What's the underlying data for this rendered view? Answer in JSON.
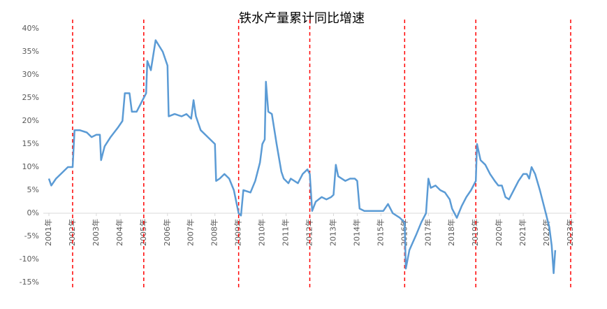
{
  "chart_data": {
    "type": "line",
    "title": "铁水产量累计同比增速",
    "xlim": [
      2001,
      2023
    ],
    "xticks": [
      {
        "value": 2001,
        "label": "2001年"
      },
      {
        "value": 2002,
        "label": "2002年"
      },
      {
        "value": 2003,
        "label": "2003年"
      },
      {
        "value": 2004,
        "label": "2004年"
      },
      {
        "value": 2005,
        "label": "2005年"
      },
      {
        "value": 2006,
        "label": "2006年"
      },
      {
        "value": 2007,
        "label": "2007年"
      },
      {
        "value": 2008,
        "label": "2008年"
      },
      {
        "value": 2009,
        "label": "2009年"
      },
      {
        "value": 2010,
        "label": "2010年"
      },
      {
        "value": 2011,
        "label": "2011年"
      },
      {
        "value": 2012,
        "label": "2012年"
      },
      {
        "value": 2013,
        "label": "2013年"
      },
      {
        "value": 2014,
        "label": "2014年"
      },
      {
        "value": 2015,
        "label": "2015年"
      },
      {
        "value": 2016,
        "label": "2016年"
      },
      {
        "value": 2017,
        "label": "2017年"
      },
      {
        "value": 2018,
        "label": "2018年"
      },
      {
        "value": 2019,
        "label": "2019年"
      },
      {
        "value": 2020,
        "label": "2020年"
      },
      {
        "value": 2021,
        "label": "2021年"
      },
      {
        "value": 2022,
        "label": "2022年"
      },
      {
        "value": 2023,
        "label": "2023年"
      }
    ],
    "ylim": [
      -15,
      40
    ],
    "yticks": [
      {
        "value": 40,
        "label": "40%"
      },
      {
        "value": 35,
        "label": "35%"
      },
      {
        "value": 30,
        "label": "30%"
      },
      {
        "value": 25,
        "label": "25%"
      },
      {
        "value": 20,
        "label": "20%"
      },
      {
        "value": 15,
        "label": "15%"
      },
      {
        "value": 10,
        "label": "10%"
      },
      {
        "value": 5,
        "label": "5%"
      },
      {
        "value": 0,
        "label": "0%"
      },
      {
        "value": -5,
        "label": "-5%"
      },
      {
        "value": -10,
        "label": "-10%"
      },
      {
        "value": -15,
        "label": "-15%"
      }
    ],
    "vlines": [
      2002,
      2005,
      2009,
      2012,
      2016,
      2019,
      2023
    ],
    "vline_color": "#ff0000",
    "x": [
      2001.0,
      2001.1,
      2001.3,
      2001.6,
      2001.8,
      2002.0,
      2002.08,
      2002.3,
      2002.6,
      2002.8,
      2003.0,
      2003.15,
      2003.2,
      2003.35,
      2003.6,
      2003.9,
      2004.1,
      2004.2,
      2004.4,
      2004.5,
      2004.7,
      2005.0,
      2005.1,
      2005.15,
      2005.3,
      2005.5,
      2005.8,
      2006.0,
      2006.05,
      2006.3,
      2006.6,
      2006.8,
      2007.0,
      2007.1,
      2007.2,
      2007.4,
      2007.7,
      2008.0,
      2008.05,
      2008.2,
      2008.4,
      2008.6,
      2008.8,
      2009.0,
      2009.1,
      2009.2,
      2009.5,
      2009.7,
      2009.9,
      2010.0,
      2010.1,
      2010.15,
      2010.25,
      2010.4,
      2010.6,
      2010.8,
      2010.9,
      2011.1,
      2011.2,
      2011.5,
      2011.7,
      2011.9,
      2012.0,
      2012.1,
      2012.25,
      2012.5,
      2012.7,
      2012.9,
      2013.0,
      2013.1,
      2013.2,
      2013.5,
      2013.7,
      2013.9,
      2014.0,
      2014.1,
      2014.3,
      2014.5,
      2014.8,
      2015.1,
      2015.3,
      2015.5,
      2015.8,
      2016.0,
      2016.05,
      2016.2,
      2016.5,
      2016.7,
      2016.9,
      2017.0,
      2017.1,
      2017.3,
      2017.5,
      2017.7,
      2017.9,
      2018.0,
      2018.2,
      2018.4,
      2018.6,
      2018.8,
      2019.0,
      2019.05,
      2019.2,
      2019.4,
      2019.6,
      2019.8,
      2019.95,
      2020.1,
      2020.25,
      2020.4,
      2020.6,
      2020.8,
      2021.0,
      2021.15,
      2021.25,
      2021.35,
      2021.5,
      2021.7,
      2021.9,
      2022.1,
      2022.2,
      2022.28,
      2022.35
    ],
    "series": [
      {
        "color": "#5b9bd5",
        "values": [
          7.5,
          6,
          7.5,
          9,
          10,
          10,
          18,
          18,
          17.5,
          16.5,
          17,
          17,
          11.5,
          14.5,
          16.5,
          18.5,
          20,
          26,
          26,
          22,
          22,
          25,
          26,
          33,
          31,
          37.5,
          35,
          32,
          21,
          21.5,
          21,
          21.5,
          20.5,
          24.5,
          21,
          18,
          16.5,
          15,
          7,
          7.5,
          8.5,
          7.5,
          5,
          0,
          -0.5,
          5,
          4.5,
          7,
          11,
          15,
          16,
          28.5,
          22,
          21.5,
          15,
          9,
          7.5,
          6.5,
          7.5,
          6.5,
          8.5,
          9.5,
          8.5,
          0.5,
          2.5,
          3.5,
          3,
          3.5,
          4,
          10.5,
          8,
          7,
          7.5,
          7.5,
          7,
          1,
          0.5,
          0.5,
          0.5,
          0.5,
          2,
          0,
          -1,
          -2,
          -12,
          -8,
          -4.5,
          -2,
          0,
          7.5,
          5.5,
          6,
          5,
          4.5,
          3,
          1,
          -1,
          1.5,
          3.5,
          5,
          7,
          15,
          11.5,
          10.5,
          8.5,
          7,
          6,
          6,
          3.5,
          3,
          5,
          7,
          8.5,
          8.5,
          7.5,
          10,
          8.5,
          5,
          1,
          -3,
          -7,
          -13,
          -8
        ]
      }
    ]
  }
}
